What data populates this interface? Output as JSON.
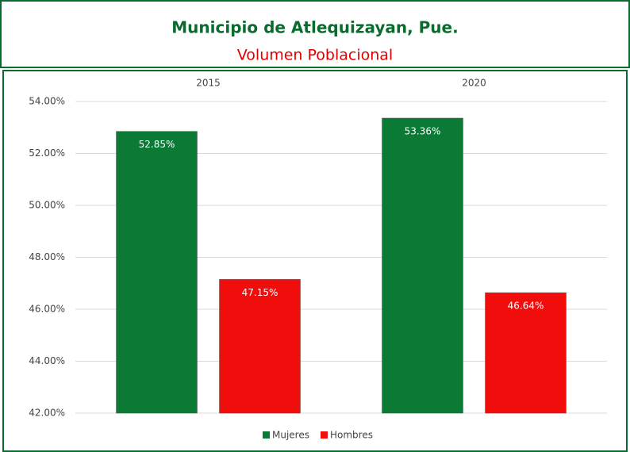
{
  "chart_data": {
    "type": "bar",
    "title": "Municipio de Atlequizayan, Pue.",
    "subtitle": "Volumen Poblacional",
    "categories": [
      "2015",
      "2020"
    ],
    "series": [
      {
        "name": "Mujeres",
        "color": "#0b7a35",
        "values": [
          52.85,
          53.36
        ],
        "value_labels": [
          "52.85%",
          "53.36%"
        ]
      },
      {
        "name": "Hombres",
        "color": "#f20d0d",
        "values": [
          47.15,
          46.64
        ],
        "value_labels": [
          "47.15%",
          "46.64%"
        ]
      }
    ],
    "ylim": [
      42,
      54
    ],
    "yticks": [
      {
        "value": 42,
        "label": "42.00%"
      },
      {
        "value": 44,
        "label": "44.00%"
      },
      {
        "value": 46,
        "label": "46.00%"
      },
      {
        "value": 48,
        "label": "48.00%"
      },
      {
        "value": 50,
        "label": "50.00%"
      },
      {
        "value": 52,
        "label": "52.00%"
      },
      {
        "value": 54,
        "label": "54.00%"
      }
    ],
    "grid": true,
    "legend": "bottom"
  }
}
